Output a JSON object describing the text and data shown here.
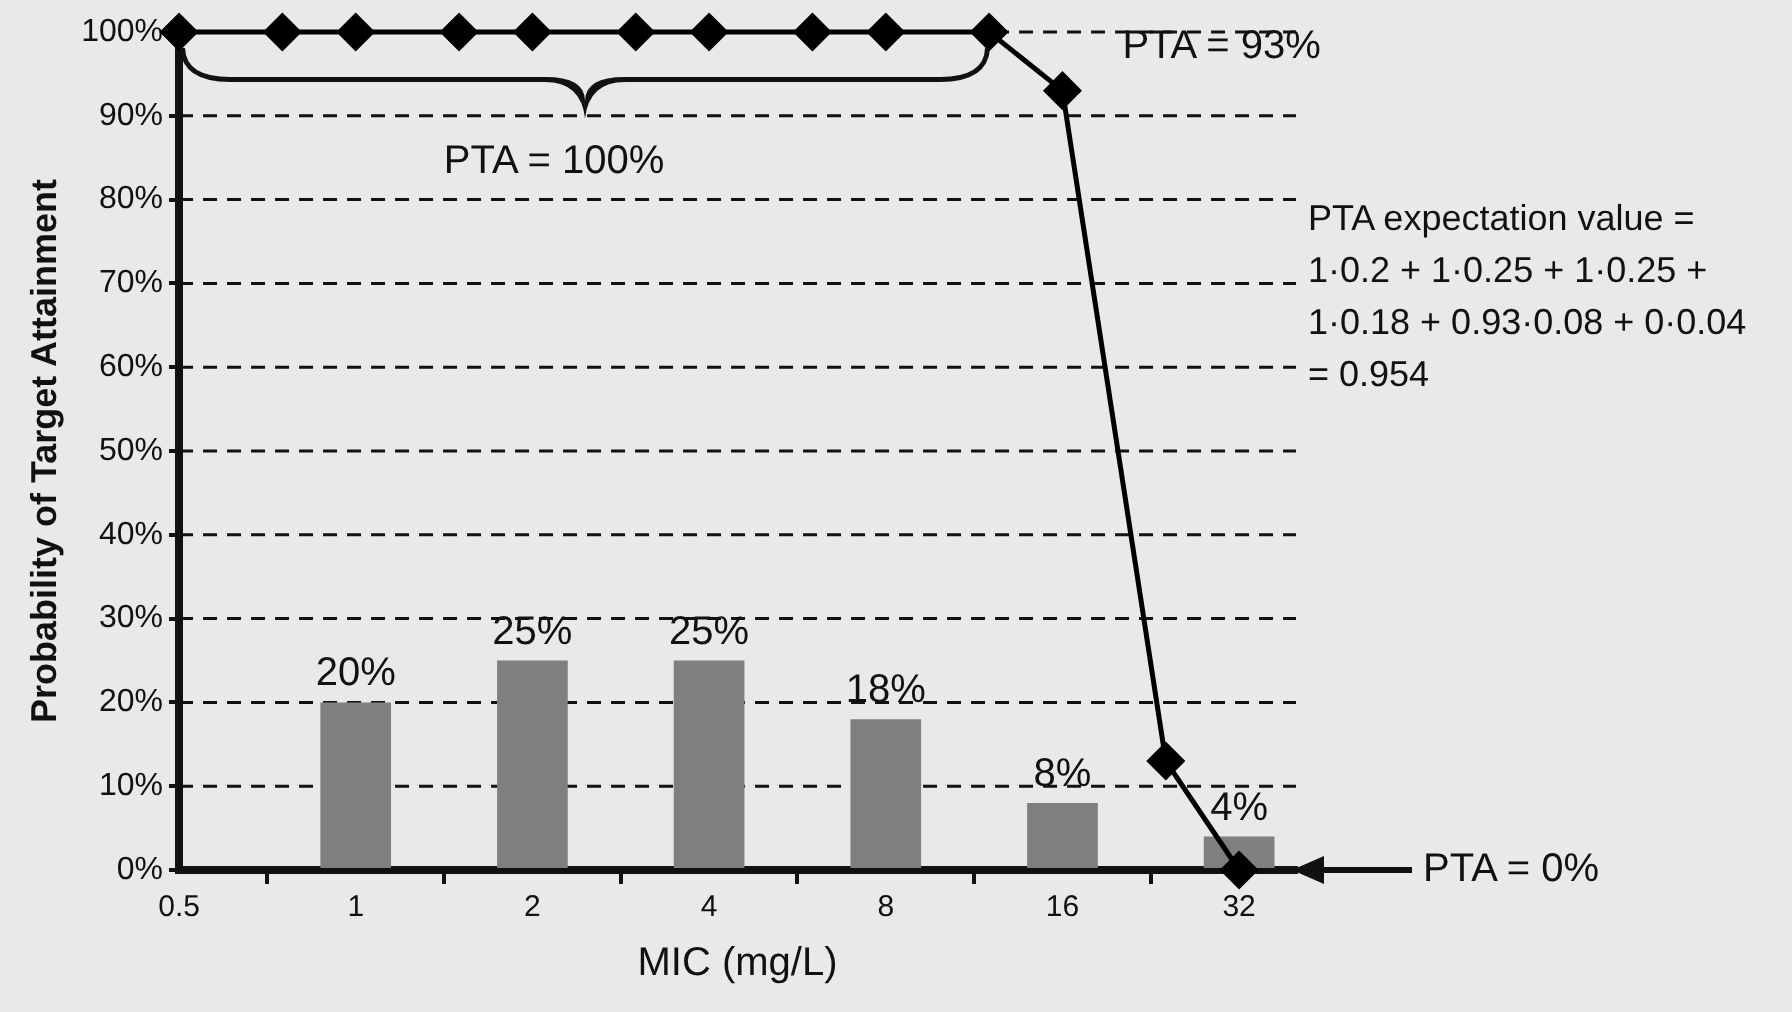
{
  "chart_data": {
    "type": "bar",
    "xlabel": "MIC (mg/L)",
    "ylabel": "Probability of Target Attainment",
    "xlim": [
      0.5,
      40
    ],
    "xticks": [
      0.5,
      1,
      2,
      4,
      8,
      16,
      32
    ],
    "log": "x",
    "ylim": [
      0,
      100
    ],
    "yticks": [
      {
        "value": 0,
        "label": "0%"
      },
      {
        "value": 10,
        "label": "10%"
      },
      {
        "value": 20,
        "label": "20%"
      },
      {
        "value": 30,
        "label": "30%"
      },
      {
        "value": 40,
        "label": "40%"
      },
      {
        "value": 50,
        "label": "50%"
      },
      {
        "value": 60,
        "label": "60%"
      },
      {
        "value": 70,
        "label": "70%"
      },
      {
        "value": 80,
        "label": "80%"
      },
      {
        "value": 90,
        "label": "90%"
      },
      {
        "value": 100,
        "label": "100%"
      }
    ],
    "grid": "y",
    "legend": false,
    "series": [
      {
        "color": "#7f7f7f",
        "x": [
          1,
          2,
          4,
          8,
          16,
          32
        ],
        "values": [
          20,
          25,
          25,
          18,
          8,
          4
        ],
        "value_labels": [
          "20%",
          "25%",
          "25%",
          "18%",
          "8%",
          "4%"
        ]
      },
      {
        "type": "line",
        "color": "#000000",
        "marker": "diamond",
        "line_style": "solid",
        "x": [
          0.5,
          0.75,
          1,
          1.5,
          2,
          3,
          4,
          6,
          8,
          12,
          16,
          24,
          32
        ],
        "values": [
          100,
          100,
          100,
          100,
          100,
          100,
          100,
          100,
          100,
          100,
          93,
          13,
          0
        ]
      }
    ],
    "annotations": [
      "PTA = 100%",
      {
        "text": "PTA = 93%",
        "x": 16,
        "y": 93
      },
      "PTA expectation value =\n1·0.2 + 1·0.25 + 1·0.25 +\n1·0.18 + 0.93·0.08 + 0·0.04\n= 0.954",
      "PTA = 0%"
    ]
  }
}
